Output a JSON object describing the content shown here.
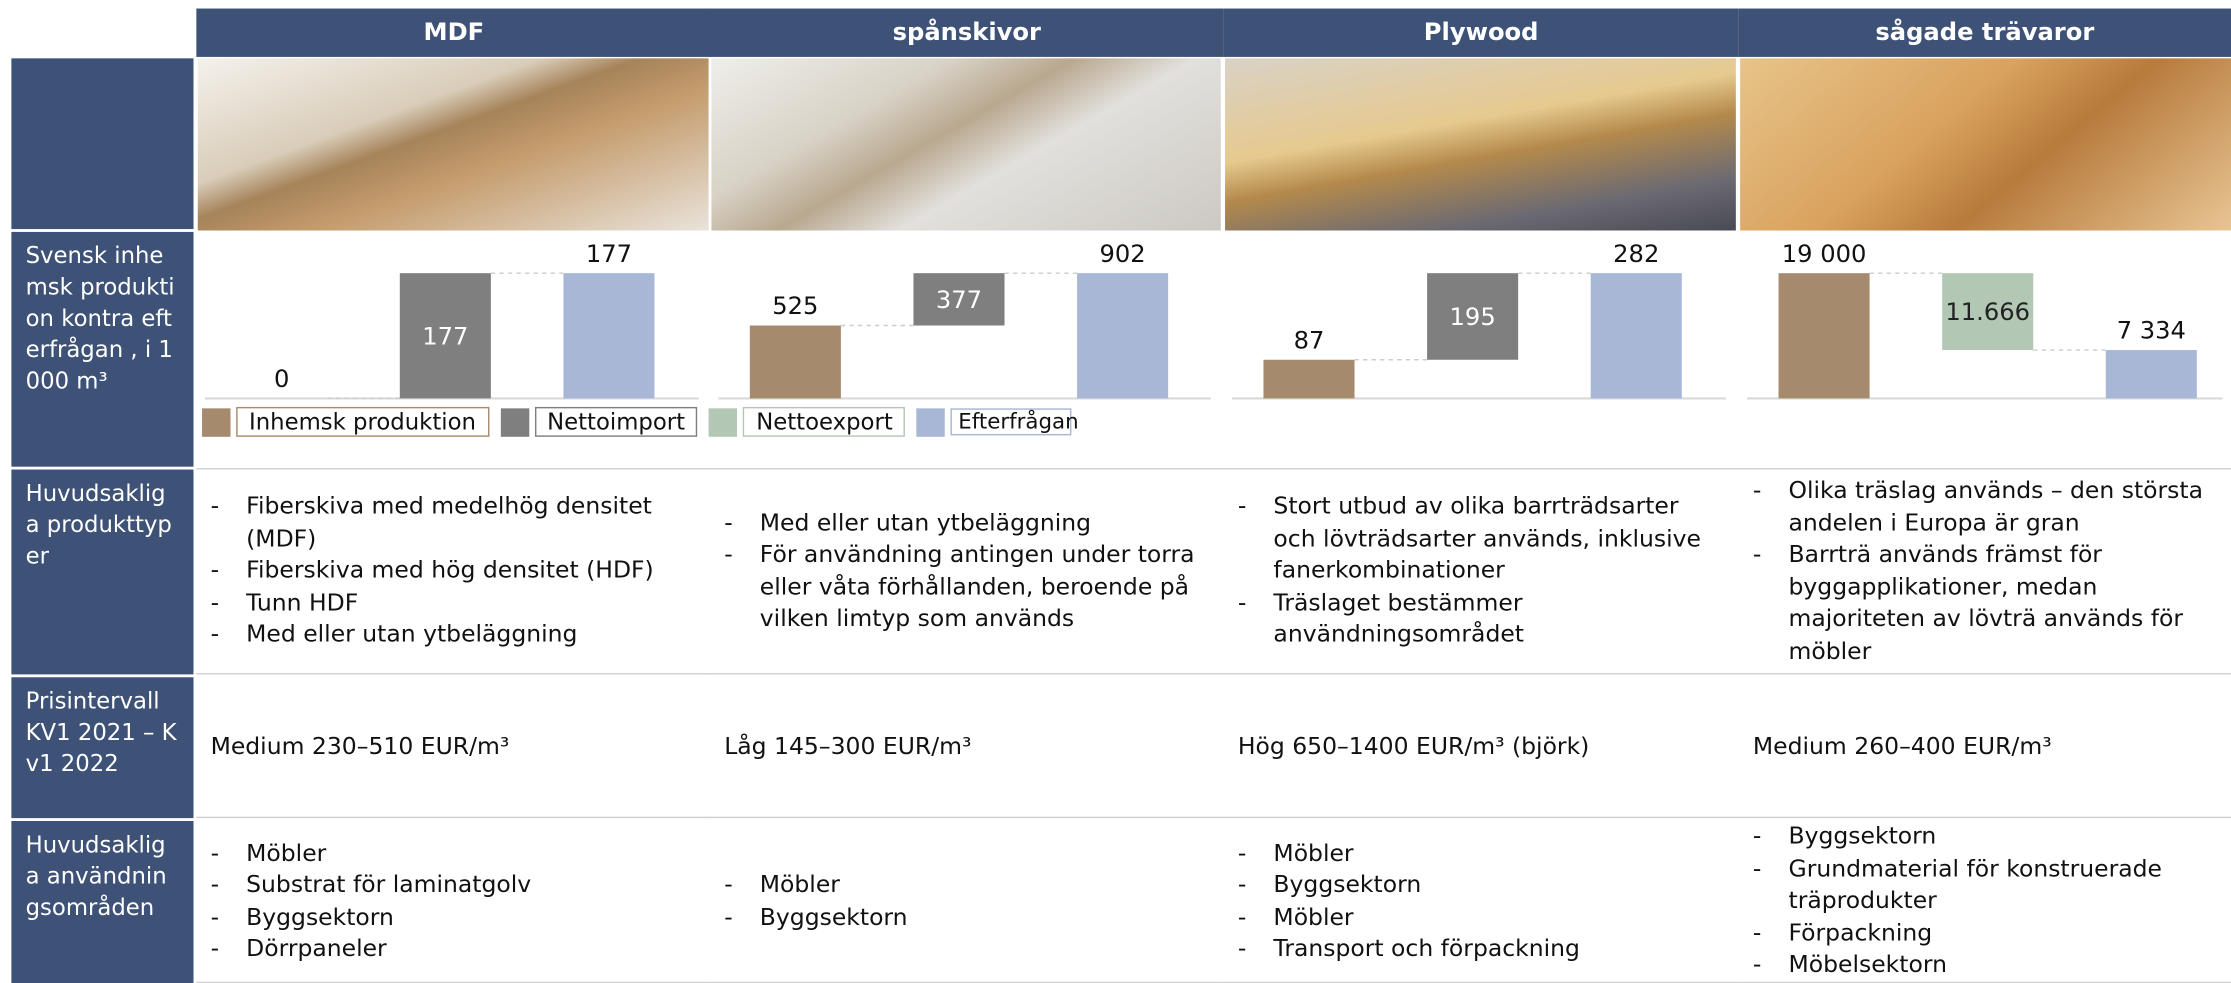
{
  "columns": [
    "MDF",
    "spånskivor",
    "Plywood",
    "sågade trävaror"
  ],
  "row_headers": [
    "Svensk inhemsk produktion kontra efterfrågan , i 1000 m³",
    "Huvudsakliga produkttyper",
    "Prisintervall KV1 2021 – Kv1 2022",
    "Huvudsakliga användningsområden"
  ],
  "legend": [
    {
      "name": "Inhemsk produktion",
      "color": "#a68a6d"
    },
    {
      "name": "Nettoimport",
      "color": "#7f7f7f"
    },
    {
      "name": "Nettoexport",
      "color": "#b3c7b5"
    },
    {
      "name": "Efterfrågan",
      "color": "#a8b7d5"
    }
  ],
  "chart_data": [
    {
      "type": "waterfall",
      "values": [
        0,
        177,
        177
      ],
      "colors": [
        "#a68a6d",
        "#7f7f7f",
        "#a8b7d5"
      ],
      "ylim": [
        0,
        177
      ]
    },
    {
      "type": "waterfall",
      "values": [
        525,
        377,
        902
      ],
      "colors": [
        "#a68a6d",
        "#7f7f7f",
        "#a8b7d5"
      ],
      "ylim": [
        0,
        902
      ]
    },
    {
      "type": "waterfall",
      "values": [
        87,
        195,
        282
      ],
      "colors": [
        "#a68a6d",
        "#7f7f7f",
        "#a8b7d5"
      ],
      "ylim": [
        0,
        282
      ]
    },
    {
      "type": "waterfall",
      "values": [
        19000,
        11666,
        7334
      ],
      "value_labels": [
        "19 000",
        "11.666",
        "7 334"
      ],
      "colors": [
        "#a68a6d",
        "#b3c7b5",
        "#a8b7d5"
      ],
      "ylim": [
        0,
        19000
      ]
    }
  ],
  "product_types": [
    [
      "Fiberskiva med medelhög densitet (MDF)",
      "Fiberskiva med hög densitet (HDF)",
      "Tunn HDF",
      "Med eller utan ytbeläggning"
    ],
    [
      "Med eller utan ytbeläggning",
      "För användning antingen under torra eller våta förhållanden, beroende på vilken limtyp som används"
    ],
    [
      "Stort utbud av olika barrträdsarter och lövträdsarter används, inklusive fanerkombinationer",
      "Träslaget bestämmer användningsområdet"
    ],
    [
      "Olika träslag används – den största andelen i Europa är gran",
      "Barrträ används främst för byggapplikationer, medan majoriteten av lövträ används för möbler"
    ]
  ],
  "prices": [
    "Medium 230–510 EUR/m³",
    "Låg 145–300 EUR/m³",
    "Hög 650–1400 EUR/m³ (björk)",
    "Medium 260–400 EUR/m³"
  ],
  "uses": [
    [
      "Möbler",
      "Substrat för laminatgolv",
      "Byggsektorn",
      "Dörrpaneler"
    ],
    [
      "Möbler",
      "Byggsektorn"
    ],
    [
      "Möbler",
      "Byggsektorn",
      "Möbler",
      "Transport och förpackning"
    ],
    [
      "Byggsektorn",
      "Grundmaterial för konstruerade träprodukter",
      "Förpackning",
      "Möbelsektorn"
    ]
  ]
}
